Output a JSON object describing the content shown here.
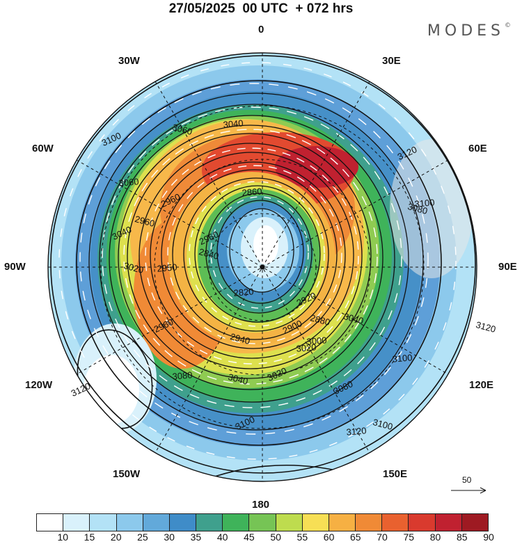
{
  "title": "27/05/2025  00 UTC  + 072 hrs",
  "brand": "MODES",
  "brand_mark": "©",
  "lon_labels": {
    "n": "0",
    "s": "180",
    "w90": "90W",
    "e90": "90E",
    "w30": "30W",
    "e30": "30E",
    "w60": "60W",
    "e60": "60E",
    "w120": "120W",
    "e120": "120E",
    "w150": "150W",
    "e150": "150E"
  },
  "reference_vector": "50",
  "colorbar": {
    "ticks": [
      "10",
      "15",
      "20",
      "25",
      "30",
      "35",
      "40",
      "45",
      "50",
      "55",
      "60",
      "65",
      "70",
      "75",
      "80",
      "85",
      "90"
    ],
    "colors": [
      "#ffffff",
      "#d9f1fb",
      "#b3e2f6",
      "#8cc9ec",
      "#62a9da",
      "#3f8cc8",
      "#3fa08d",
      "#3fb35a",
      "#76c455",
      "#bedc4e",
      "#f7df55",
      "#f6b043",
      "#f08a36",
      "#e9612f",
      "#d93a2e",
      "#c02130",
      "#9e1a22"
    ]
  },
  "contour_labels": {
    "geopotential": [
      "3100",
      "3060",
      "3040",
      "2960",
      "2960",
      "2860",
      "2960",
      "2840",
      "3060",
      "3040",
      "3020",
      "2950",
      "2960",
      "3080",
      "3100",
      "3120",
      "3120",
      "3100",
      "3080",
      "3040",
      "3020",
      "2920",
      "2880",
      "2820",
      "2900",
      "2940",
      "3000",
      "3020",
      "3040",
      "3080",
      "3100",
      "3100",
      "3120",
      "3120"
    ]
  }
}
